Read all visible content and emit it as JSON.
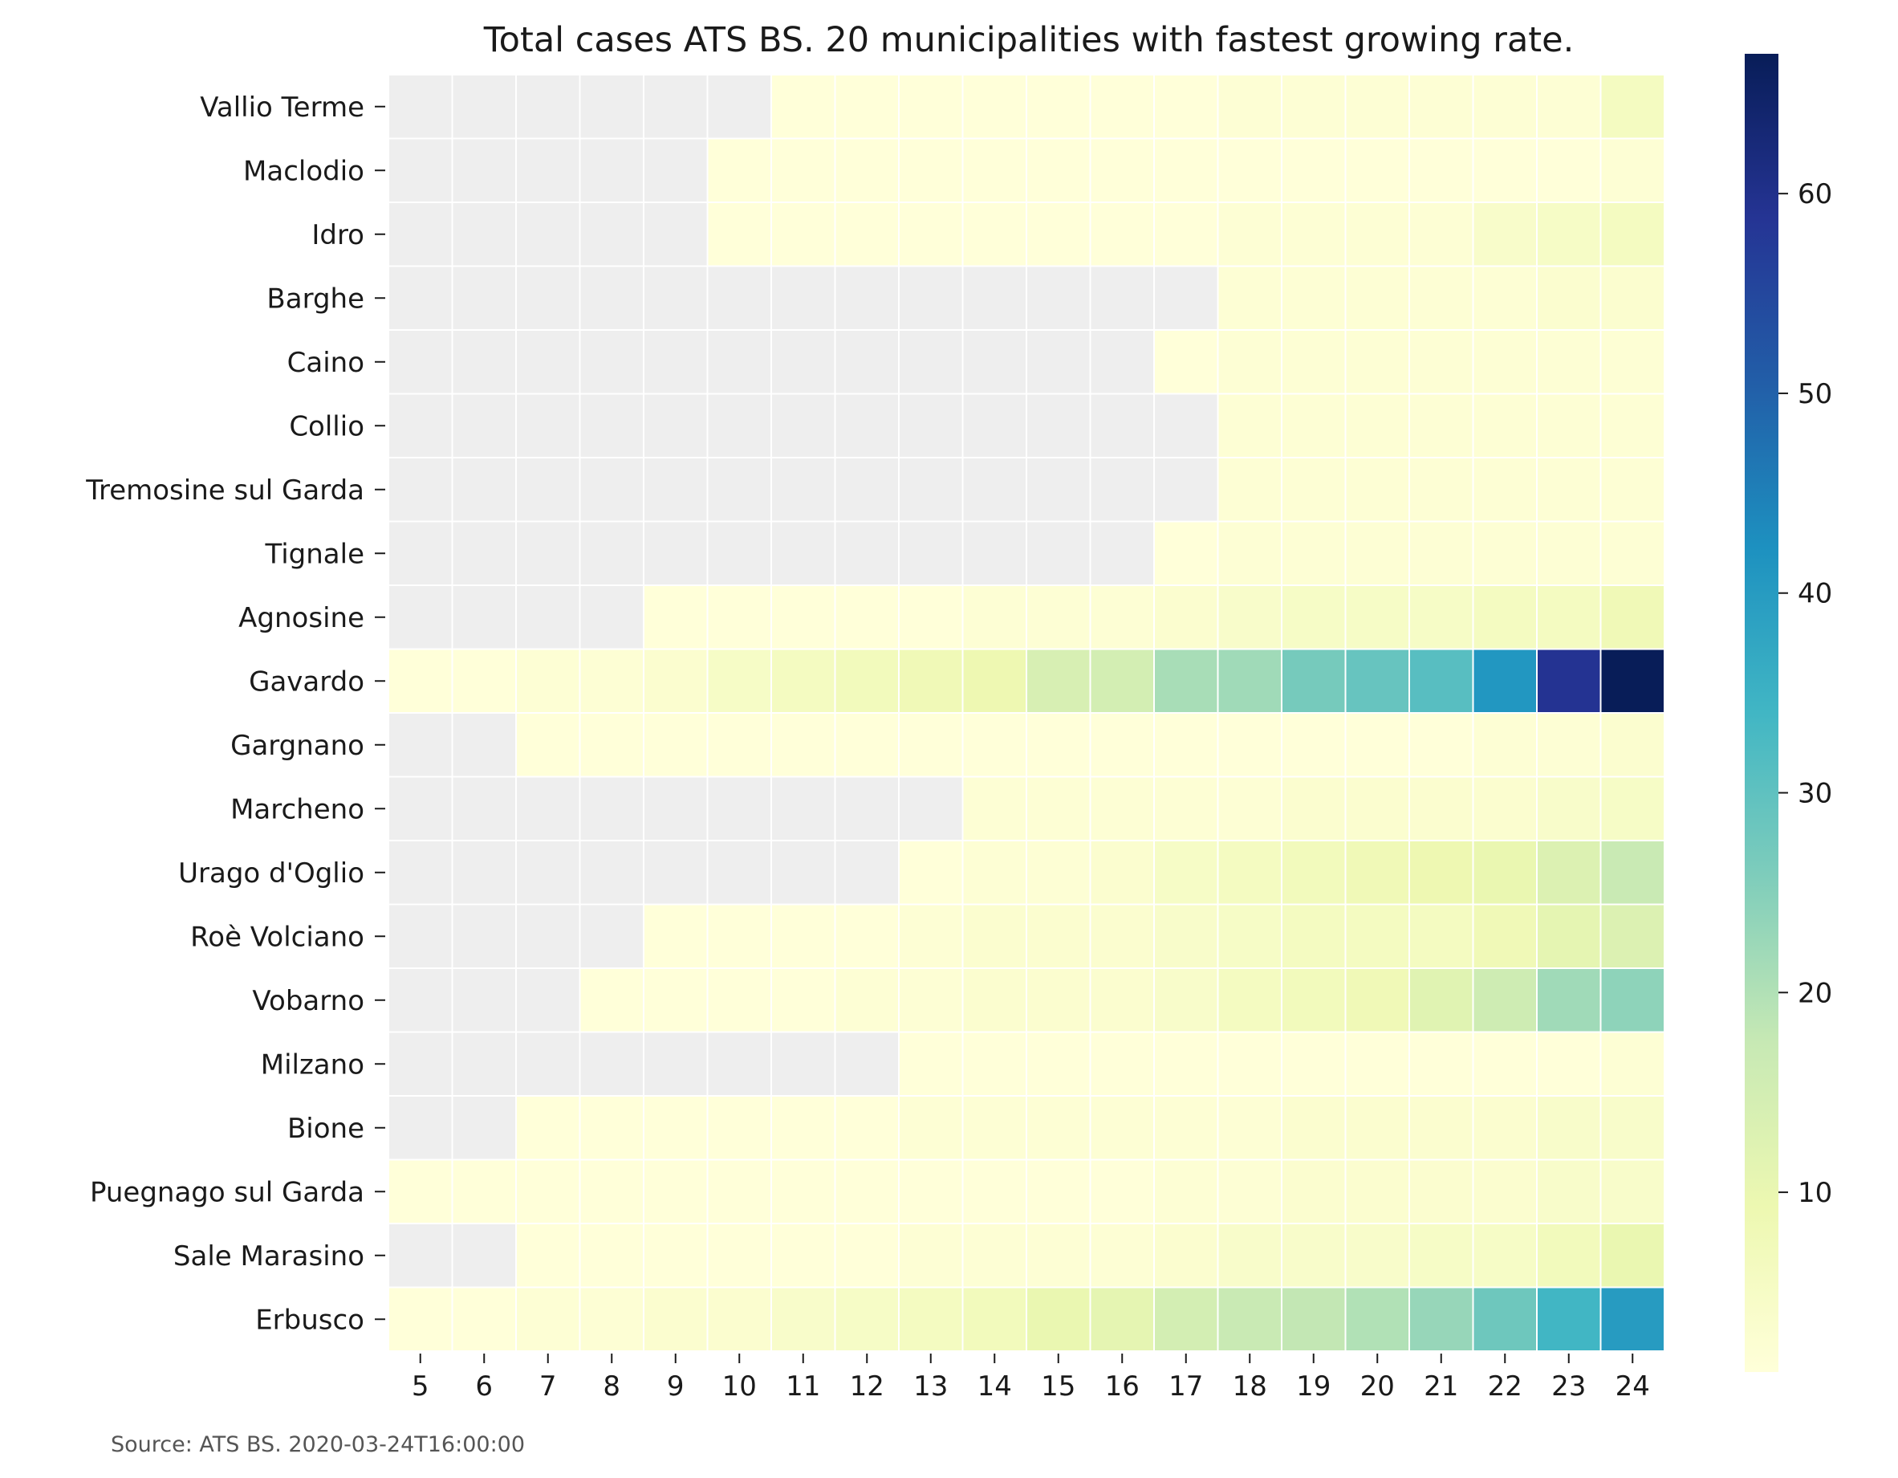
{
  "chart_data": {
    "type": "heatmap",
    "title": "Total cases ATS BS. 20 municipalities with fastest growing rate.",
    "source": "Source: ATS BS. 2020-03-24T16:00:00",
    "x": [
      5,
      6,
      7,
      8,
      9,
      10,
      11,
      12,
      13,
      14,
      15,
      16,
      17,
      18,
      19,
      20,
      21,
      22,
      23,
      24
    ],
    "y": [
      "Vallio Terme",
      "Maclodio",
      "Idro",
      "Barghe",
      "Caino",
      "Collio",
      "Tremosine sul Garda",
      "Tignale",
      "Agnosine",
      "Gavardo",
      "Gargnano",
      "Marcheno",
      "Urago d'Oglio",
      "Roè Volciano",
      "Vobarno",
      "Milzano",
      "Bione",
      "Puegnago sul Garda",
      "Sale Marasino",
      "Erbusco"
    ],
    "values": [
      [
        null,
        null,
        null,
        null,
        null,
        null,
        1,
        1,
        1,
        1,
        1,
        1,
        1,
        2,
        2,
        2,
        2,
        2,
        2,
        6
      ],
      [
        null,
        null,
        null,
        null,
        null,
        1,
        1,
        1,
        1,
        1,
        1,
        1,
        1,
        1,
        1,
        1,
        1,
        1,
        1,
        2
      ],
      [
        null,
        null,
        null,
        null,
        null,
        1,
        1,
        1,
        1,
        1,
        1,
        1,
        1,
        2,
        2,
        2,
        2,
        4,
        5,
        6
      ],
      [
        null,
        null,
        null,
        null,
        null,
        null,
        null,
        null,
        null,
        null,
        null,
        null,
        null,
        2,
        2,
        2,
        2,
        2,
        3,
        3
      ],
      [
        null,
        null,
        null,
        null,
        null,
        null,
        null,
        null,
        null,
        null,
        null,
        null,
        1,
        2,
        2,
        2,
        2,
        2,
        2,
        2
      ],
      [
        null,
        null,
        null,
        null,
        null,
        null,
        null,
        null,
        null,
        null,
        null,
        null,
        null,
        2,
        2,
        2,
        2,
        2,
        2,
        2
      ],
      [
        null,
        null,
        null,
        null,
        null,
        null,
        null,
        null,
        null,
        null,
        null,
        null,
        null,
        2,
        2,
        2,
        2,
        2,
        2,
        2
      ],
      [
        null,
        null,
        null,
        null,
        null,
        null,
        null,
        null,
        null,
        null,
        null,
        null,
        1,
        2,
        2,
        2,
        2,
        2,
        2,
        2
      ],
      [
        null,
        null,
        null,
        null,
        1,
        1,
        1,
        1,
        1,
        2,
        2,
        2,
        3,
        4,
        5,
        5,
        5,
        6,
        6,
        8
      ],
      [
        1,
        1,
        2,
        2,
        3,
        5,
        6,
        7,
        8,
        9,
        14,
        15,
        21,
        22,
        27,
        29,
        31,
        41,
        59,
        67
      ],
      [
        null,
        null,
        1,
        1,
        1,
        1,
        1,
        1,
        1,
        1,
        1,
        1,
        1,
        1,
        1,
        1,
        1,
        2,
        2,
        3
      ],
      [
        null,
        null,
        null,
        null,
        null,
        null,
        null,
        null,
        null,
        2,
        2,
        2,
        2,
        2,
        3,
        3,
        3,
        3,
        4,
        5
      ],
      [
        null,
        null,
        null,
        null,
        null,
        null,
        null,
        null,
        1,
        2,
        2,
        3,
        5,
        6,
        7,
        8,
        9,
        10,
        13,
        17
      ],
      [
        null,
        null,
        null,
        null,
        1,
        1,
        1,
        1,
        2,
        3,
        3,
        3,
        4,
        5,
        6,
        6,
        6,
        8,
        11,
        13
      ],
      [
        null,
        null,
        null,
        1,
        1,
        1,
        1,
        2,
        2,
        3,
        3,
        3,
        4,
        6,
        7,
        8,
        12,
        16,
        22,
        24
      ],
      [
        null,
        null,
        null,
        null,
        null,
        null,
        null,
        null,
        1,
        1,
        1,
        1,
        1,
        1,
        1,
        1,
        1,
        1,
        1,
        2
      ],
      [
        null,
        null,
        1,
        1,
        1,
        1,
        1,
        1,
        2,
        2,
        2,
        2,
        2,
        2,
        3,
        3,
        3,
        3,
        4,
        4
      ],
      [
        1,
        1,
        1,
        1,
        1,
        1,
        1,
        1,
        1,
        1,
        1,
        1,
        2,
        2,
        3,
        3,
        3,
        3,
        4,
        4
      ],
      [
        null,
        null,
        1,
        1,
        1,
        1,
        1,
        1,
        2,
        2,
        2,
        2,
        3,
        4,
        4,
        4,
        5,
        5,
        7,
        10
      ],
      [
        1,
        1,
        2,
        2,
        3,
        3,
        4,
        5,
        6,
        7,
        10,
        11,
        15,
        17,
        18,
        20,
        23,
        28,
        34,
        40
      ]
    ],
    "missing_color": "#eeeeee",
    "colormap": "YlGnBu",
    "colorbar": {
      "range": [
        1,
        67
      ],
      "ticks": [
        10,
        20,
        30,
        40,
        50,
        60
      ]
    },
    "grid": true
  }
}
